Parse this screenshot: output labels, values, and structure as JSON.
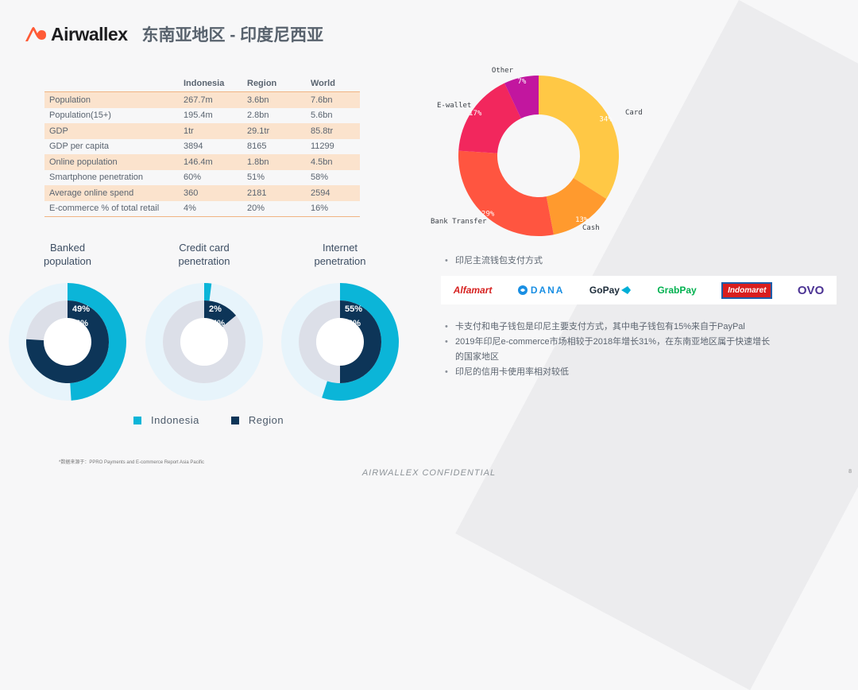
{
  "header": {
    "brand": "Airwallex",
    "title": "东南亚地区 - 印度尼西亚"
  },
  "table": {
    "columns": [
      "",
      "Indonesia",
      "Region",
      "World"
    ],
    "rows": [
      [
        "Population",
        "267.7m",
        "3.6bn",
        "7.6bn"
      ],
      [
        "Population(15+)",
        "195.4m",
        "2.8bn",
        "5.6bn"
      ],
      [
        "GDP",
        "1tr",
        "29.1tr",
        "85.8tr"
      ],
      [
        "GDP per capita",
        "3894",
        "8165",
        "11299"
      ],
      [
        "Online population",
        "146.4m",
        "1.8bn",
        "4.5bn"
      ],
      [
        "Smartphone penetration",
        "60%",
        "51%",
        "58%"
      ],
      [
        "Average online spend",
        "360",
        "2181",
        "2594"
      ],
      [
        "E-commerce % of total retail",
        "4%",
        "20%",
        "16%"
      ]
    ]
  },
  "chart_data": [
    {
      "type": "pie",
      "labels": [
        "Card",
        "Cash",
        "Bank Transfer",
        "E-wallet",
        "Other"
      ],
      "values": [
        34,
        13,
        29,
        17,
        7
      ],
      "value_labels": [
        "34%",
        "13%",
        "29%",
        "17%",
        "7%"
      ],
      "colors": [
        "#ffc845",
        "#ff9a2e",
        "#ff5540",
        "#f2275d",
        "#c2169f"
      ]
    },
    {
      "type": "pie",
      "title": "Banked population",
      "series": [
        {
          "name": "Indonesia",
          "value": 49,
          "label": "49%"
        },
        {
          "name": "Region",
          "value": 76,
          "label": "76%"
        }
      ]
    },
    {
      "type": "pie",
      "title": "Credit card penetration",
      "series": [
        {
          "name": "Indonesia",
          "value": 2,
          "label": "2%"
        },
        {
          "name": "Region",
          "value": 14,
          "label": "14%"
        }
      ]
    },
    {
      "type": "pie",
      "title": "Internet penetration",
      "series": [
        {
          "name": "Indonesia",
          "value": 55,
          "label": "55%"
        },
        {
          "name": "Region",
          "value": 50,
          "label": "50%"
        }
      ]
    }
  ],
  "rings": {
    "titles": [
      [
        "Banked",
        "population"
      ],
      [
        "Credit card",
        "penetration"
      ],
      [
        "Internet",
        "penetration"
      ]
    ],
    "legend": [
      "Indonesia",
      "Region"
    ],
    "colors": {
      "indonesia": "#0bb5d8",
      "region": "#0d3558",
      "outer_track": "#e7f4fb",
      "inner_track": "#dcdfe8"
    }
  },
  "payments": {
    "heading": "印尼主流钱包支付方式",
    "logos": [
      "Alfamart",
      "DANA",
      "GoPay",
      "GrabPay",
      "Indomaret",
      "OVO"
    ],
    "notes": [
      "卡支付和电子钱包是印尼主要支付方式，其中电子钱包有15%来自于PayPal",
      "2019年印尼e-commerce市场相较于2018年增长31%，在东南亚地区属于快速增长的国家地区",
      "印尼的信用卡使用率相对较低"
    ]
  },
  "footer": {
    "source": "*数据来源于：PPRO Payments and E-commerce Report Asia Pacific",
    "confidential": "AIRWALLEX CONFIDENTIAL",
    "page": "8"
  }
}
